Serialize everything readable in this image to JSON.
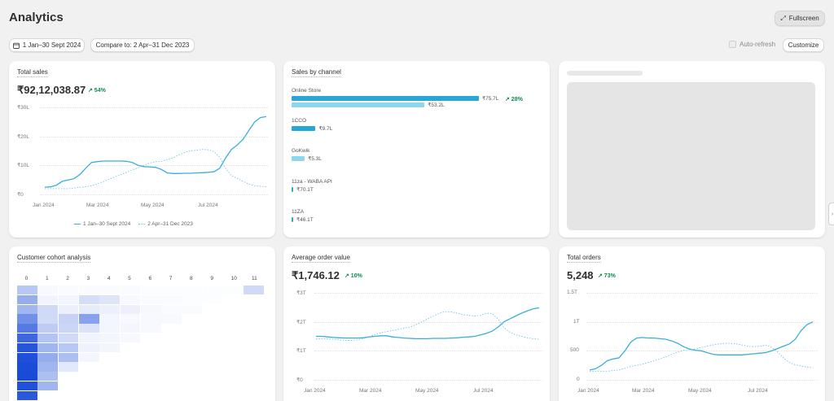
{
  "header": {
    "title": "Analytics",
    "fullscreen_label": "Fullscreen",
    "date_range_label": "1 Jan–30 Sept 2024",
    "compare_label": "Compare to: 2 Apr–31 Dec 2023",
    "autorefresh_label": "Auto-refresh",
    "customize_label": "Customize"
  },
  "colors": {
    "primary_line": "#3aaedb",
    "compare_line": "#6cc7e3",
    "positive": "#0c8a4a",
    "bar_dark": "#29a6d8",
    "bar_light": "#8ed5ef"
  },
  "total_sales": {
    "title": "Total sales",
    "value": "₹92,12,038.87",
    "delta": "↗ 54%",
    "y_ticks": [
      "₹30L",
      "₹20L",
      "₹10L",
      "₹0"
    ],
    "x_ticks": [
      "Jan 2024",
      "Mar 2024",
      "May 2024",
      "Jul 2024"
    ],
    "legend_current": "1 Jan–30 Sept 2024",
    "legend_compare": "2 Apr–31 Dec 2023",
    "chart_data": {
      "type": "line",
      "ylim": [
        0,
        30
      ],
      "x": [
        0,
        1,
        2,
        3,
        4,
        5,
        6,
        7,
        8,
        9,
        10,
        11,
        12,
        13,
        14,
        15,
        16,
        17,
        18,
        19,
        20,
        21,
        22,
        23,
        24,
        25,
        26,
        27,
        28,
        29,
        30,
        31,
        32,
        33,
        34,
        35,
        36,
        37,
        38
      ],
      "series": [
        {
          "values": [
            2.5,
            2.6,
            3.2,
            4.5,
            5.0,
            5.4,
            6.8,
            9.0,
            11.0,
            11.3,
            11.5,
            11.5,
            11.5,
            11.5,
            11.4,
            11.0,
            10.0,
            9.6,
            9.5,
            9.3,
            8.6,
            7.4,
            7.2,
            7.2,
            7.3,
            7.3,
            7.4,
            7.5,
            7.6,
            7.8,
            9.0,
            12.5,
            15.5,
            17.0,
            19.0,
            22.0,
            25.0,
            26.5,
            26.8
          ]
        },
        {
          "values": [
            2.0,
            2.0,
            2.0,
            2.0,
            2.0,
            2.2,
            2.4,
            2.6,
            3.0,
            3.6,
            4.4,
            5.2,
            6.0,
            6.8,
            7.6,
            8.4,
            9.2,
            10.0,
            10.8,
            11.3,
            11.4,
            12.0,
            12.6,
            13.6,
            14.5,
            15.0,
            15.2,
            15.5,
            15.4,
            14.8,
            12.8,
            9.0,
            6.5,
            5.5,
            4.5,
            3.5,
            3.0,
            2.8,
            2.6
          ]
        }
      ]
    }
  },
  "sales_by_channel": {
    "title": "Sales by channel",
    "channels": [
      {
        "name": "Online Store",
        "value": "₹75.7L",
        "compare_value": "₹53.2L",
        "delta": "↗ 28%",
        "share": 1.0,
        "compare_share": 0.71
      },
      {
        "name": "1CCO",
        "value": "₹9.7L",
        "share": 0.128
      },
      {
        "name": "GoKwik",
        "value": "₹5.3L",
        "share": 0.07
      },
      {
        "name": "11za - WABA API",
        "value": "₹70.1T",
        "share": 0.009
      },
      {
        "name": "11ZA",
        "value": "₹46.1T",
        "share": 0.006
      }
    ]
  },
  "cohort": {
    "title": "Customer cohort analysis",
    "columns": [
      "0",
      "1",
      "2",
      "3",
      "4",
      "5",
      "6",
      "7",
      "8",
      "9",
      "10",
      "11"
    ],
    "rows": [
      [
        0.3,
        0.03,
        0.02,
        0.02,
        0.02,
        0.02,
        0.01,
        0.01,
        0.01,
        0.01,
        0.01,
        0.2
      ],
      [
        0.45,
        0.06,
        0.05,
        0.18,
        0.14,
        0.03,
        0.02,
        0.02,
        0.01,
        0.01
      ],
      [
        0.4,
        0.2,
        0.08,
        0.1,
        0.08,
        0.08,
        0.04,
        0.02,
        0.02
      ],
      [
        0.6,
        0.2,
        0.24,
        0.5,
        0.05,
        0.03,
        0.03,
        0.03
      ],
      [
        0.72,
        0.28,
        0.22,
        0.15,
        0.05,
        0.05,
        0.03
      ],
      [
        0.82,
        0.32,
        0.2,
        0.06,
        0.05,
        0.04
      ],
      [
        0.92,
        0.4,
        0.3,
        0.07,
        0.05
      ],
      [
        0.95,
        0.45,
        0.35,
        0.05
      ],
      [
        0.97,
        0.4,
        0.12
      ],
      [
        0.98,
        0.35
      ],
      [
        0.94,
        0.4
      ],
      [
        0.9
      ]
    ]
  },
  "aov": {
    "title": "Average order value",
    "value": "₹1,746.12",
    "delta": "↗ 10%",
    "y_ticks": [
      "₹3T",
      "₹2T",
      "₹1T",
      "₹0"
    ],
    "x_ticks": [
      "Jan 2024",
      "Mar 2024",
      "May 2024",
      "Jul 2024"
    ],
    "chart_data": {
      "type": "line",
      "ylim": [
        0,
        3
      ],
      "x": [
        0,
        1,
        2,
        3,
        4,
        5,
        6,
        7,
        8,
        9,
        10,
        11,
        12,
        13,
        14,
        15,
        16,
        17,
        18,
        19,
        20,
        21,
        22,
        23,
        24,
        25,
        26,
        27,
        28,
        29,
        30,
        31,
        32,
        33,
        34,
        35,
        36,
        37,
        38
      ],
      "series": [
        {
          "values": [
            1.5,
            1.5,
            1.48,
            1.46,
            1.45,
            1.44,
            1.44,
            1.44,
            1.45,
            1.48,
            1.5,
            1.52,
            1.52,
            1.48,
            1.46,
            1.44,
            1.43,
            1.42,
            1.42,
            1.42,
            1.43,
            1.43,
            1.43,
            1.44,
            1.45,
            1.47,
            1.48,
            1.5,
            1.55,
            1.6,
            1.68,
            1.82,
            2.0,
            2.1,
            2.2,
            2.3,
            2.38,
            2.45,
            2.48
          ]
        },
        {
          "values": [
            1.42,
            1.42,
            1.42,
            1.4,
            1.38,
            1.36,
            1.36,
            1.38,
            1.42,
            1.48,
            1.56,
            1.62,
            1.66,
            1.7,
            1.74,
            1.78,
            1.82,
            1.9,
            2.0,
            2.1,
            2.2,
            2.3,
            2.35,
            2.34,
            2.3,
            2.25,
            2.22,
            2.2,
            2.22,
            2.3,
            2.28,
            2.1,
            1.8,
            1.65,
            1.55,
            1.5,
            1.45,
            1.42,
            1.4
          ]
        }
      ]
    }
  },
  "total_orders": {
    "title": "Total orders",
    "value": "5,248",
    "delta": "↗ 73%",
    "y_ticks": [
      "1.5T",
      "1T",
      "500",
      "0"
    ],
    "x_ticks": [
      "Jan 2024",
      "Mar 2024",
      "May 2024",
      "Jul 2024"
    ],
    "chart_data": {
      "type": "line",
      "ylim": [
        0,
        1500
      ],
      "x": [
        0,
        1,
        2,
        3,
        4,
        5,
        6,
        7,
        8,
        9,
        10,
        11,
        12,
        13,
        14,
        15,
        16,
        17,
        18,
        19,
        20,
        21,
        22,
        23,
        24,
        25,
        26,
        27,
        28,
        29,
        30,
        31,
        32,
        33,
        34,
        35,
        36,
        37,
        38
      ],
      "series": [
        {
          "values": [
            170,
            190,
            250,
            330,
            360,
            380,
            500,
            650,
            720,
            730,
            720,
            720,
            710,
            700,
            670,
            630,
            570,
            530,
            510,
            500,
            470,
            440,
            430,
            430,
            430,
            430,
            430,
            440,
            450,
            460,
            470,
            500,
            540,
            580,
            620,
            700,
            850,
            950,
            1000
          ]
        },
        {
          "values": [
            150,
            150,
            150,
            150,
            160,
            170,
            200,
            230,
            250,
            270,
            300,
            330,
            360,
            400,
            440,
            480,
            510,
            520,
            530,
            560,
            580,
            600,
            620,
            630,
            630,
            620,
            600,
            580,
            570,
            580,
            600,
            560,
            480,
            380,
            300,
            260,
            240,
            220,
            210
          ]
        }
      ]
    }
  },
  "edge_tab_glyph": "›"
}
